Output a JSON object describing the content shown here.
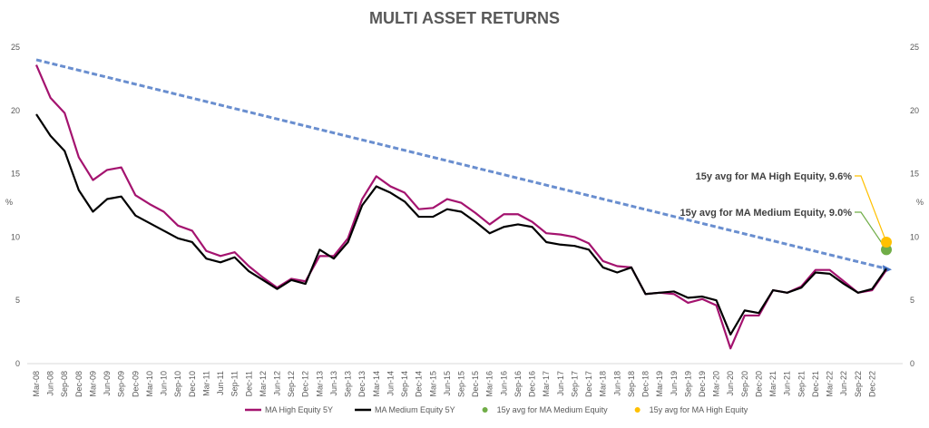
{
  "chart_data": {
    "type": "line",
    "title": "MULTI ASSET RETURNS",
    "ylabel": "%",
    "categories": [
      "Mar-08",
      "Jun-08",
      "Sep-08",
      "Dec-08",
      "Mar-09",
      "Jun-09",
      "Sep-09",
      "Dec-09",
      "Mar-10",
      "Jun-10",
      "Sep-10",
      "Dec-10",
      "Mar-11",
      "Jun-11",
      "Sep-11",
      "Dec-11",
      "Mar-12",
      "Jun-12",
      "Sep-12",
      "Dec-12",
      "Mar-13",
      "Jun-13",
      "Sep-13",
      "Dec-13",
      "Mar-14",
      "Jun-14",
      "Sep-14",
      "Dec-14",
      "Mar-15",
      "Jun-15",
      "Sep-15",
      "Dec-15",
      "Mar-16",
      "Jun-16",
      "Sep-16",
      "Dec-16",
      "Mar-17",
      "Jun-17",
      "Sep-17",
      "Dec-17",
      "Mar-18",
      "Jun-18",
      "Sep-18",
      "Dec-18",
      "Mar-19",
      "Jun-19",
      "Sep-19",
      "Dec-19",
      "Mar-20",
      "Jun-20",
      "Sep-20",
      "Dec-20",
      "Mar-21",
      "Jun-21",
      "Sep-21",
      "Dec-21",
      "Mar-22",
      "Jun-22",
      "Sep-22",
      "Dec-22",
      null
    ],
    "series": [
      {
        "name": "MA High Equity 5Y",
        "color": "#a4136f",
        "values": [
          23.6,
          21.0,
          19.8,
          16.3,
          14.5,
          15.3,
          15.5,
          13.3,
          12.6,
          12.0,
          10.9,
          10.5,
          8.9,
          8.5,
          8.8,
          7.7,
          6.8,
          6.0,
          6.7,
          6.5,
          8.5,
          8.5,
          9.9,
          13.0,
          14.8,
          14.0,
          13.5,
          12.2,
          12.3,
          13.0,
          12.7,
          11.9,
          11.0,
          11.8,
          11.8,
          11.2,
          10.3,
          10.2,
          10.0,
          9.5,
          8.1,
          7.7,
          7.6,
          5.5,
          5.6,
          5.5,
          4.8,
          5.1,
          4.6,
          1.2,
          3.8,
          3.8,
          5.8,
          5.6,
          6.1,
          7.4,
          7.4,
          6.5,
          5.6,
          5.8,
          7.4
        ]
      },
      {
        "name": "MA Medium Equity 5Y",
        "color": "#000000",
        "values": [
          19.7,
          18.0,
          16.8,
          13.7,
          12.0,
          13.0,
          13.2,
          11.7,
          11.1,
          10.5,
          9.9,
          9.6,
          8.3,
          8.0,
          8.4,
          7.3,
          6.6,
          5.9,
          6.6,
          6.3,
          9.0,
          8.3,
          9.6,
          12.5,
          14.0,
          13.5,
          12.8,
          11.6,
          11.6,
          12.2,
          12.0,
          11.2,
          10.3,
          10.8,
          11.0,
          10.8,
          9.6,
          9.4,
          9.3,
          9.0,
          7.6,
          7.2,
          7.6,
          5.5,
          5.6,
          5.7,
          5.2,
          5.3,
          5.0,
          2.3,
          4.2,
          4.0,
          5.8,
          5.6,
          6.0,
          7.2,
          7.1,
          6.3,
          5.6,
          5.9,
          7.5
        ]
      },
      {
        "name": "15y avg for  MA Medium Equity",
        "color": "#70ad47",
        "type": "scatter",
        "values": [
          9.0
        ],
        "value_labels": [
          "15y avg for  MA Medium Equity, 9.0%"
        ]
      },
      {
        "name": "15y avg for  MA High Equity",
        "color": "#ffc000",
        "type": "scatter",
        "values": [
          9.6
        ],
        "value_labels": [
          "15y avg for  MA High Equity, 9.6%"
        ]
      }
    ],
    "trend": {
      "color": "#4472c4",
      "values": [
        24,
        7.5
      ]
    },
    "ylim": [
      0,
      25
    ],
    "yticks": [
      0,
      5,
      10,
      15,
      20,
      25
    ],
    "legend": "bottom"
  }
}
